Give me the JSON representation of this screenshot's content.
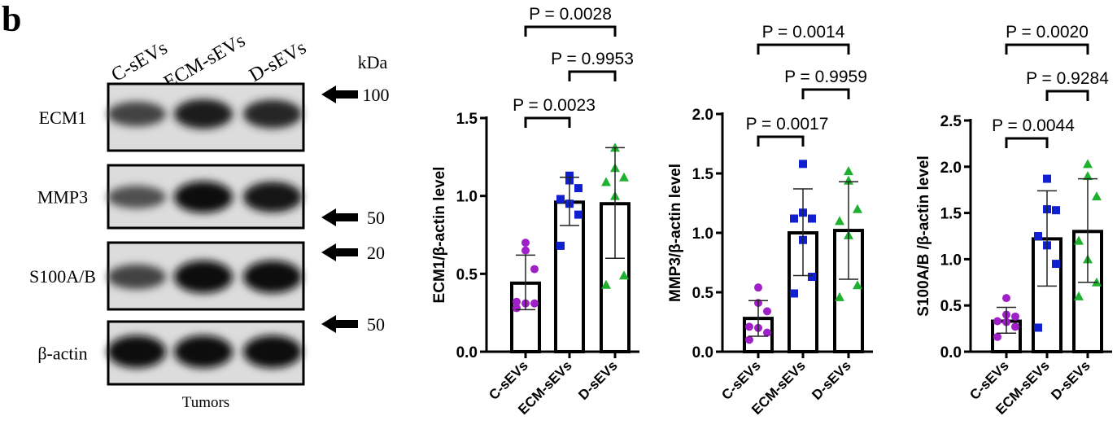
{
  "panel_label": "b",
  "blot": {
    "lanes": [
      "C-sEVs",
      "ECM-sEVs",
      "D-sEVs"
    ],
    "kda_label": "kDa",
    "rows": [
      {
        "label": "ECM1",
        "marker": "100",
        "intensity": [
          0.6,
          0.85,
          0.8
        ]
      },
      {
        "label": "MMP3",
        "marker": "50",
        "intensity": [
          0.5,
          0.95,
          0.9
        ]
      },
      {
        "label": "S100A/B",
        "marker": "20",
        "intensity": [
          0.6,
          1.0,
          1.0
        ]
      },
      {
        "label": "β-actin",
        "marker": "50",
        "intensity": [
          1.0,
          1.0,
          1.0
        ]
      }
    ],
    "footer": "Tumors"
  },
  "colors": {
    "C-sEVs": "#a020c8",
    "ECM-sEVs": "#1020d0",
    "D-sEVs": "#20b030"
  },
  "chart_data": [
    {
      "type": "bar",
      "ylabel": "ECM1/β-actin  level",
      "categories": [
        "C-sEVs",
        "ECM-sEVs",
        "D-sEVs"
      ],
      "ylim": [
        0,
        1.5
      ],
      "yticks": [
        "0.0",
        "0.5",
        "1.0",
        "1.5"
      ],
      "values": [
        0.44,
        0.96,
        0.95
      ],
      "error": [
        [
          0.27,
          0.62
        ],
        [
          0.81,
          1.12
        ],
        [
          0.6,
          1.31
        ]
      ],
      "points": [
        [
          0.7,
          0.65,
          0.53,
          0.32,
          0.31,
          0.31,
          0.28
        ],
        [
          1.13,
          1.1,
          1.05,
          0.98,
          0.95,
          0.88,
          0.68
        ],
        [
          1.31,
          1.18,
          1.12,
          1.09,
          1.0,
          0.49,
          0.43
        ]
      ],
      "comparisons": [
        {
          "pair": [
            0,
            2
          ],
          "label": "P = 0.0028"
        },
        {
          "pair": [
            1,
            2
          ],
          "label": "P = 0.9953"
        },
        {
          "pair": [
            0,
            1
          ],
          "label": "P = 0.0023"
        }
      ]
    },
    {
      "type": "bar",
      "ylabel": "MMP3/β-actin  level",
      "categories": [
        "C-sEVs",
        "ECM-sEVs",
        "D-sEVs"
      ],
      "ylim": [
        0,
        2.0
      ],
      "yticks": [
        "0.0",
        "0.5",
        "1.0",
        "1.5",
        "2.0"
      ],
      "values": [
        0.28,
        1.0,
        1.02
      ],
      "error": [
        [
          0.13,
          0.43
        ],
        [
          0.64,
          1.37
        ],
        [
          0.61,
          1.43
        ]
      ],
      "points": [
        [
          0.54,
          0.41,
          0.34,
          0.21,
          0.2,
          0.16,
          0.1
        ],
        [
          1.58,
          1.17,
          1.12,
          1.12,
          0.94,
          0.63,
          0.49
        ],
        [
          1.52,
          1.44,
          1.2,
          1.1,
          0.98,
          0.56,
          0.46
        ]
      ],
      "comparisons": [
        {
          "pair": [
            0,
            2
          ],
          "label": "P = 0.0014"
        },
        {
          "pair": [
            1,
            2
          ],
          "label": "P = 0.9959"
        },
        {
          "pair": [
            0,
            1
          ],
          "label": "P = 0.0017"
        }
      ]
    },
    {
      "type": "bar",
      "ylabel": "S100A/B /β-actin level",
      "categories": [
        "C-sEVs",
        "ECM-sEVs",
        "D-sEVs"
      ],
      "ylim": [
        0,
        2.5
      ],
      "yticks": [
        "0.0",
        "0.5",
        "1.0",
        "1.5",
        "2.0",
        "2.5"
      ],
      "values": [
        0.33,
        1.22,
        1.3
      ],
      "error": [
        [
          0.2,
          0.48
        ],
        [
          0.71,
          1.74
        ],
        [
          0.75,
          1.87
        ]
      ],
      "points": [
        [
          0.58,
          0.4,
          0.38,
          0.33,
          0.32,
          0.27,
          0.16
        ],
        [
          1.87,
          1.54,
          1.53,
          1.25,
          1.15,
          0.95,
          0.26
        ],
        [
          2.03,
          1.9,
          1.68,
          1.2,
          1.0,
          0.75,
          0.6
        ]
      ],
      "comparisons": [
        {
          "pair": [
            0,
            2
          ],
          "label": "P = 0.0020"
        },
        {
          "pair": [
            1,
            2
          ],
          "label": "P = 0.9284"
        },
        {
          "pair": [
            0,
            1
          ],
          "label": "P = 0.0044"
        }
      ]
    }
  ]
}
